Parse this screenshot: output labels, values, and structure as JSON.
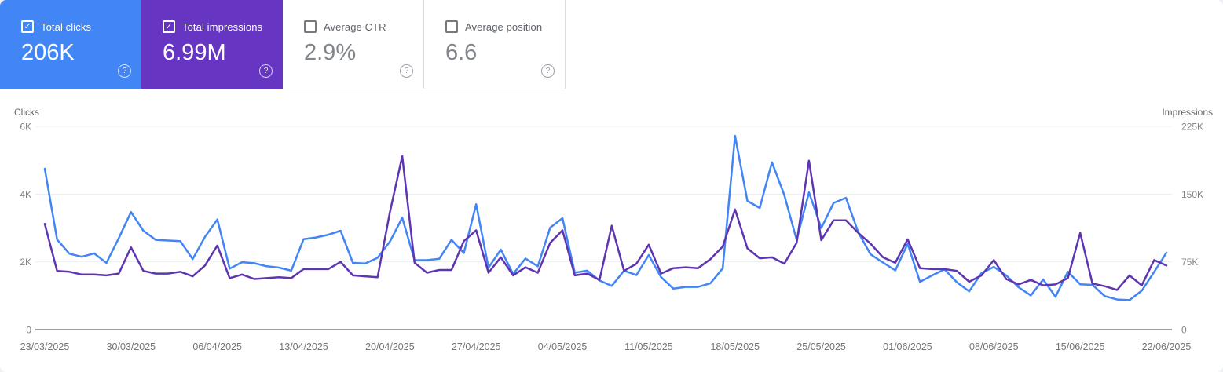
{
  "cards": [
    {
      "id": "total-clicks",
      "label": "Total clicks",
      "value": "206K",
      "checked": true,
      "bg_color": "#4285f4",
      "text_color": "#ffffff"
    },
    {
      "id": "total-impressions",
      "label": "Total impressions",
      "value": "6.99M",
      "checked": true,
      "bg_color": "#6636c3",
      "text_color": "#ffffff"
    },
    {
      "id": "average-ctr",
      "label": "Average CTR",
      "value": "2.9%",
      "checked": false,
      "bg_color": "#ffffff",
      "text_color": "#80868b"
    },
    {
      "id": "average-position",
      "label": "Average position",
      "value": "6.6",
      "checked": false,
      "bg_color": "#ffffff",
      "text_color": "#80868b"
    }
  ],
  "icons": {
    "checked_checkbox": "checkmark",
    "unchecked_checkbox": "empty-square",
    "help": "?"
  },
  "colors": {
    "clicks_line": "#4285f4",
    "impressions_line": "#5e35b1",
    "gridline": "#ebedef",
    "zero_line": "#9aa0a6",
    "tick_text": "#80868b",
    "axis_title_text": "#5f6368",
    "date_text": "#757575"
  },
  "chart_data": {
    "type": "line",
    "x_interval": "daily",
    "x_start_date": "23/03/2025",
    "x_end_date": "22/06/2025",
    "x_tick_labels": [
      "23/03/2025",
      "30/03/2025",
      "06/04/2025",
      "13/04/2025",
      "20/04/2025",
      "27/04/2025",
      "04/05/2025",
      "11/05/2025",
      "18/05/2025",
      "25/05/2025",
      "01/06/2025",
      "08/06/2025",
      "15/06/2025",
      "22/06/2025"
    ],
    "left_axis": {
      "title": "Clicks",
      "tick_labels": [
        "6K",
        "4K",
        "2K",
        "0"
      ],
      "range": [
        0,
        6000
      ]
    },
    "right_axis": {
      "title": "Impressions",
      "tick_labels": [
        "225K",
        "150K",
        "75K",
        "0"
      ],
      "range": [
        0,
        225000
      ]
    },
    "grid": "horizontal",
    "legend": "none",
    "series": [
      {
        "name": "Clicks",
        "axis": "left",
        "color": "#4285f4",
        "values": [
          4750,
          2660,
          2240,
          2150,
          2250,
          1970,
          2700,
          3470,
          2920,
          2650,
          2630,
          2610,
          2080,
          2740,
          3250,
          1800,
          1990,
          1960,
          1870,
          1830,
          1740,
          2670,
          2720,
          2800,
          2920,
          1970,
          1950,
          2120,
          2600,
          3300,
          2050,
          2050,
          2090,
          2650,
          2260,
          3700,
          1830,
          2360,
          1640,
          2100,
          1870,
          3010,
          3290,
          1680,
          1740,
          1450,
          1290,
          1740,
          1610,
          2200,
          1550,
          1210,
          1260,
          1260,
          1370,
          1810,
          5720,
          3800,
          3590,
          4940,
          3970,
          2650,
          4050,
          3000,
          3740,
          3890,
          2870,
          2220,
          1980,
          1750,
          2530,
          1410,
          1600,
          1780,
          1400,
          1130,
          1670,
          1850,
          1600,
          1250,
          1010,
          1480,
          970,
          1710,
          1340,
          1320,
          990,
          890,
          870,
          1150,
          1700,
          2270
        ]
      },
      {
        "name": "Impressions",
        "axis": "right",
        "color": "#5e35b1",
        "values": [
          117000,
          65000,
          64000,
          61000,
          61000,
          60000,
          62000,
          91000,
          65000,
          62000,
          62000,
          64000,
          59000,
          71000,
          93000,
          57000,
          61000,
          56000,
          57000,
          58000,
          57000,
          67000,
          67000,
          67000,
          75000,
          60000,
          59000,
          58000,
          130000,
          192000,
          74000,
          63000,
          66000,
          66000,
          98000,
          110000,
          63000,
          80000,
          60000,
          69000,
          63000,
          96000,
          110000,
          60000,
          62000,
          55000,
          115000,
          65000,
          73000,
          94000,
          62000,
          68000,
          69000,
          68000,
          78000,
          92000,
          133000,
          90000,
          79000,
          80000,
          73000,
          96000,
          187000,
          99000,
          121000,
          121000,
          107000,
          95000,
          80000,
          74000,
          100000,
          68000,
          67000,
          67000,
          65000,
          53000,
          60000,
          77000,
          56000,
          50000,
          55000,
          49000,
          50000,
          57000,
          107000,
          51000,
          48000,
          44000,
          60000,
          49000,
          77000,
          71000
        ]
      }
    ]
  }
}
